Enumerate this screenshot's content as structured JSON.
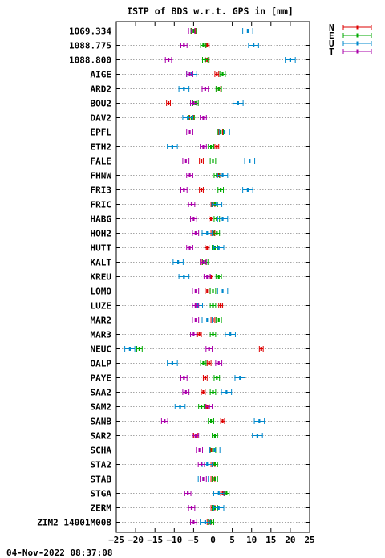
{
  "chart_data": {
    "type": "scatter",
    "title": "ISTP of BDS w.r.t. GPS in [mm]",
    "timestamp": "04-Nov-2022 08:37:08",
    "xlim": [
      -25,
      25
    ],
    "x_ticks": [
      -25,
      -20,
      -15,
      -10,
      -5,
      0,
      5,
      10,
      15,
      20,
      25
    ],
    "grid": true,
    "legend_position": "top-right",
    "categories": [
      "1069.334",
      "1088.775",
      "1088.800",
      "AIGE",
      "ARD2",
      "BOU2",
      "DAV2",
      "EPFL",
      "ETH2",
      "FALE",
      "FHNW",
      "FRI3",
      "FRIC",
      "HABG",
      "HOH2",
      "HUTT",
      "KALT",
      "KREU",
      "LOMO",
      "LUZE",
      "MAR2",
      "MAR3",
      "NEUC",
      "OALP",
      "PAYE",
      "SAA2",
      "SAM2",
      "SANB",
      "SAR2",
      "SCHA",
      "STA2",
      "STAB",
      "STGA",
      "ZERM",
      "ZIM2_14001M008"
    ],
    "series": [
      {
        "name": "N",
        "color": "#dd0000",
        "errbar": 0.5,
        "values": [
          -5,
          -1.5,
          -1.5,
          1,
          1.5,
          -11.5,
          -5.5,
          2,
          1,
          -3,
          1.5,
          -3,
          0,
          -0.5,
          0,
          -1.5,
          -2.5,
          -0.5,
          -1.5,
          2,
          0,
          -3.5,
          12.5,
          -1,
          -2,
          -2.5,
          -1.5,
          2.5,
          -4.5,
          -0.5,
          0,
          0,
          2.5,
          0,
          -1
        ]
      },
      {
        "name": "E",
        "color": "#00aa00",
        "errbar": 0.7,
        "values": [
          -5,
          -2.5,
          -2,
          2.5,
          1.5,
          -4.5,
          -5.5,
          2,
          -0.5,
          0,
          1,
          2,
          0.5,
          1,
          1,
          0.5,
          -2,
          1.5,
          0,
          0,
          1.5,
          0,
          -19,
          -2.5,
          1,
          0,
          -3,
          -0.5,
          0.5,
          0,
          0.5,
          0.5,
          3.5,
          0.5,
          -0.5
        ]
      },
      {
        "name": "U",
        "color": "#0088cc",
        "errbar": 1.3,
        "values": [
          9,
          10.5,
          20,
          -5.5,
          -7.5,
          6.5,
          -6.5,
          3,
          -10.5,
          9.5,
          2.5,
          9,
          1,
          2.5,
          -1.5,
          1.5,
          -9,
          -7.5,
          2.5,
          -4,
          -1.5,
          4.5,
          -21.5,
          -10.5,
          7,
          3.5,
          -8.5,
          12,
          11.5,
          0.5,
          -1.5,
          -2.5,
          1.5,
          1.5,
          -2
        ]
      },
      {
        "name": "T",
        "color": "#aa00aa",
        "errbar": 0.8,
        "values": [
          -5.5,
          -7.5,
          -11.5,
          -6,
          -2,
          -5,
          -2.5,
          -6,
          -2.5,
          -7,
          -6,
          -7.5,
          -5.5,
          -5,
          -4.5,
          -6,
          -2.5,
          -1.5,
          -4.5,
          -4.5,
          -4.5,
          -5,
          -1,
          1.5,
          -7.5,
          -7,
          -1,
          -12.5,
          -4.5,
          -3.5,
          -3,
          -2.5,
          -6.5,
          -5.5,
          -5
        ]
      }
    ]
  }
}
